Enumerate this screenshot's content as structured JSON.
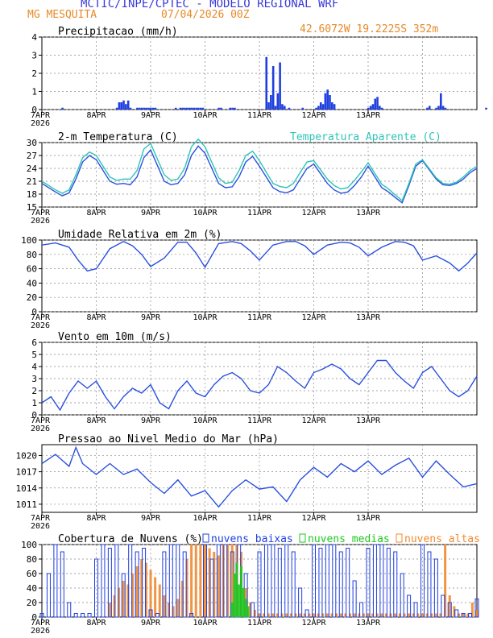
{
  "header": {
    "title": "MCTIC/INPE/CPTEC - MODELO REGIONAL WRF",
    "location": "MG MESQUITA",
    "run": "07/04/2026 00Z",
    "coords": "42.6072W 19.2225S 352m"
  },
  "colors": {
    "title": "#3a3ad8",
    "location": "#e88a2a",
    "line": "#2a50e0",
    "apparent": "#2ec4b6",
    "precip_bars": "#1f3fe0",
    "clouds_low": "#1f3fe0",
    "clouds_mid": "#1ec81e",
    "clouds_high": "#f08a30"
  },
  "x_axis": {
    "ticks": [
      "7APR",
      "8APR",
      "9APR",
      "10APR",
      "11APR",
      "12APR",
      "13APR"
    ],
    "year": "2026"
  },
  "chart_data": [
    {
      "type": "bar",
      "title": "Precipitacao (mm/h)",
      "ylim": [
        0,
        4
      ],
      "yticks": [
        0,
        1,
        2,
        3,
        4
      ],
      "hours": [
        9,
        33,
        34,
        35,
        36,
        37,
        38,
        39,
        42,
        43,
        44,
        45,
        46,
        47,
        48,
        49,
        50,
        59,
        61,
        62,
        63,
        64,
        65,
        66,
        67,
        68,
        69,
        70,
        71,
        78,
        79,
        83,
        84,
        85,
        99,
        100,
        101,
        102,
        103,
        104,
        105,
        106,
        107,
        109,
        115,
        121,
        122,
        123,
        124,
        125,
        126,
        127,
        128,
        129,
        144,
        145,
        146,
        147,
        148,
        149,
        150,
        170,
        171,
        174,
        175,
        176,
        177,
        178,
        196
      ],
      "values": [
        0.1,
        0.1,
        0.4,
        0.4,
        0.5,
        0.3,
        0.5,
        0.1,
        0.1,
        0.1,
        0.1,
        0.1,
        0.1,
        0.1,
        0.1,
        0.1,
        0.1,
        0.1,
        0.1,
        0.1,
        0.1,
        0.1,
        0.1,
        0.1,
        0.1,
        0.1,
        0.1,
        0.1,
        0.1,
        0.1,
        0.1,
        0.1,
        0.1,
        0.1,
        2.9,
        0.4,
        0.8,
        2.4,
        0.2,
        0.9,
        2.6,
        0.3,
        0.2,
        0.1,
        0.1,
        0.1,
        0.2,
        0.4,
        0.3,
        0.9,
        1.1,
        0.8,
        0.4,
        0.3,
        0.1,
        0.2,
        0.3,
        0.6,
        0.7,
        0.2,
        0.1,
        0.1,
        0.2,
        0.1,
        0.2,
        0.9,
        0.2,
        0.1,
        0.1
      ]
    },
    {
      "type": "line",
      "title": "2-m Temperatura (C)",
      "ylim": [
        15,
        30
      ],
      "yticks": [
        15,
        18,
        21,
        24,
        27,
        30
      ],
      "hours": [
        0,
        6,
        9,
        12,
        15,
        18,
        21,
        24,
        30,
        33,
        36,
        39,
        42,
        45,
        48,
        54,
        57,
        60,
        63,
        66,
        69,
        72,
        78,
        81,
        84,
        87,
        90,
        93,
        96,
        102,
        105,
        108,
        111,
        114,
        117,
        120,
        126,
        129,
        132,
        135,
        138,
        141,
        144,
        150,
        153,
        156,
        159,
        162,
        165,
        168,
        174,
        177,
        180,
        183,
        186,
        189,
        192
      ],
      "series": [
        {
          "name": "",
          "values": [
            20.5,
            18.5,
            17.6,
            18.3,
            21.5,
            25.5,
            27.0,
            26.0,
            21.0,
            20.3,
            20.5,
            20.2,
            22.0,
            26.5,
            28.3,
            21.0,
            20.2,
            20.5,
            22.5,
            27.0,
            29.2,
            27.5,
            20.5,
            19.5,
            19.7,
            22.0,
            25.5,
            26.8,
            24.5,
            19.5,
            18.6,
            18.3,
            19.0,
            21.5,
            24.0,
            25.0,
            20.5,
            19.0,
            18.2,
            18.5,
            20.0,
            22.0,
            24.5,
            19.5,
            18.5,
            17.2,
            16.0,
            20.0,
            24.5,
            25.8,
            21.5,
            20.2,
            20.0,
            20.5,
            21.5,
            23.0,
            24.0
          ]
        },
        {
          "name": "Temperatura Aparente (C)",
          "values": [
            21.0,
            19.0,
            18.2,
            19.0,
            22.5,
            26.5,
            27.8,
            27.0,
            22.0,
            21.2,
            21.5,
            21.5,
            23.5,
            28.5,
            29.8,
            22.5,
            21.2,
            21.5,
            24.0,
            29.0,
            30.8,
            29.0,
            21.8,
            20.5,
            20.8,
            23.5,
            27.0,
            28.0,
            25.8,
            20.5,
            19.8,
            19.5,
            20.5,
            23.0,
            25.5,
            25.8,
            21.5,
            20.0,
            19.2,
            19.5,
            21.2,
            23.2,
            25.3,
            20.3,
            19.2,
            17.8,
            16.5,
            20.5,
            25.0,
            26.0,
            21.8,
            20.5,
            20.3,
            20.8,
            22.0,
            23.5,
            24.5
          ]
        }
      ]
    },
    {
      "type": "line",
      "title": "Umidade Relativa em 2m (%)",
      "ylim": [
        0,
        100
      ],
      "yticks": [
        0,
        20,
        40,
        60,
        80,
        100
      ],
      "hours": [
        0,
        6,
        12,
        16,
        20,
        24,
        30,
        36,
        40,
        44,
        48,
        54,
        60,
        64,
        68,
        72,
        78,
        84,
        88,
        92,
        96,
        102,
        108,
        112,
        116,
        120,
        126,
        132,
        136,
        140,
        144,
        150,
        156,
        160,
        164,
        168,
        174,
        180,
        184,
        188,
        192
      ],
      "series": [
        {
          "name": "",
          "values": [
            93,
            96,
            90,
            72,
            57,
            60,
            88,
            98,
            92,
            80,
            63,
            75,
            97,
            97,
            82,
            62,
            95,
            98,
            95,
            85,
            72,
            93,
            98,
            98,
            92,
            80,
            93,
            97,
            96,
            90,
            78,
            90,
            98,
            97,
            92,
            72,
            78,
            68,
            57,
            68,
            82
          ]
        }
      ]
    },
    {
      "type": "line",
      "title": "Vento em 10m (m/s)",
      "ylim": [
        0,
        6
      ],
      "yticks": [
        0,
        1,
        2,
        3,
        4,
        5,
        6
      ],
      "hours": [
        0,
        4,
        8,
        12,
        16,
        20,
        24,
        28,
        32,
        36,
        40,
        44,
        48,
        52,
        56,
        60,
        64,
        68,
        72,
        76,
        80,
        84,
        88,
        92,
        96,
        100,
        104,
        108,
        112,
        116,
        120,
        124,
        128,
        132,
        136,
        140,
        144,
        148,
        152,
        156,
        160,
        164,
        168,
        172,
        176,
        180,
        184,
        188,
        192
      ],
      "series": [
        {
          "name": "",
          "values": [
            1.0,
            1.5,
            0.4,
            1.8,
            2.8,
            2.2,
            2.8,
            1.5,
            0.5,
            1.5,
            2.2,
            1.8,
            2.5,
            1.0,
            0.5,
            2.0,
            2.8,
            1.8,
            1.5,
            2.5,
            3.2,
            3.5,
            3.0,
            2.0,
            1.8,
            2.5,
            4.0,
            3.5,
            2.8,
            2.2,
            3.5,
            3.8,
            4.2,
            3.8,
            3.0,
            2.5,
            3.5,
            4.5,
            4.5,
            3.5,
            2.8,
            2.2,
            3.5,
            4.0,
            3.0,
            2.0,
            1.5,
            2.0,
            3.2
          ]
        }
      ]
    },
    {
      "type": "line",
      "title": "Pressao ao Nivel Medio do Mar (hPa)",
      "ylim": [
        1009.5,
        1022
      ],
      "yticks": [
        1011,
        1014,
        1017,
        1020
      ],
      "hours": [
        0,
        6,
        12,
        15,
        18,
        24,
        30,
        36,
        42,
        48,
        54,
        60,
        66,
        72,
        78,
        84,
        90,
        96,
        102,
        108,
        114,
        120,
        126,
        132,
        138,
        144,
        150,
        156,
        162,
        168,
        174,
        180,
        186,
        192
      ],
      "series": [
        {
          "name": "",
          "values": [
            1018.5,
            1020.2,
            1018.0,
            1021.5,
            1018.5,
            1016.5,
            1018.5,
            1016.5,
            1017.5,
            1015.0,
            1013.0,
            1015.5,
            1012.5,
            1013.5,
            1010.5,
            1013.5,
            1015.5,
            1013.8,
            1014.2,
            1011.5,
            1015.5,
            1017.8,
            1016.0,
            1018.5,
            1017.0,
            1019.0,
            1016.5,
            1018.2,
            1019.5,
            1016.0,
            1019.0,
            1016.5,
            1014.2,
            1014.8
          ]
        }
      ]
    },
    {
      "type": "bar",
      "title": "Cobertura de Nuvens (%)",
      "ylim": [
        0,
        100
      ],
      "yticks": [
        0,
        20,
        40,
        60,
        80,
        100
      ],
      "series": [
        {
          "name": "nuvens baixas",
          "hours": [
            0,
            3,
            6,
            9,
            12,
            15,
            18,
            21,
            24,
            27,
            30,
            33,
            36,
            39,
            42,
            45,
            48,
            51,
            54,
            57,
            60,
            63,
            66,
            69,
            72,
            75,
            78,
            81,
            84,
            87,
            90,
            93,
            96,
            99,
            102,
            105,
            108,
            111,
            114,
            117,
            120,
            123,
            126,
            129,
            132,
            135,
            138,
            141,
            144,
            147,
            150,
            153,
            156,
            159,
            162,
            165,
            168,
            171,
            174,
            177,
            180,
            183,
            186,
            189,
            192
          ],
          "values": [
            5,
            60,
            100,
            90,
            20,
            5,
            5,
            5,
            80,
            100,
            95,
            100,
            60,
            100,
            90,
            95,
            10,
            5,
            90,
            100,
            100,
            90,
            5,
            0,
            100,
            80,
            100,
            100,
            90,
            100,
            60,
            20,
            90,
            100,
            100,
            95,
            100,
            90,
            40,
            10,
            100,
            95,
            100,
            100,
            90,
            95,
            50,
            20,
            95,
            100,
            100,
            95,
            90,
            60,
            30,
            20,
            100,
            90,
            80,
            30,
            20,
            10,
            5,
            5,
            25
          ]
        },
        {
          "name": "nuvens medias",
          "hours": [
            84,
            85,
            86,
            87,
            88,
            89,
            90,
            91
          ],
          "values": [
            20,
            60,
            75,
            45,
            70,
            40,
            25,
            15
          ]
        },
        {
          "name": "nuvens altas",
          "hours": [
            30,
            32,
            34,
            36,
            38,
            40,
            42,
            44,
            46,
            48,
            50,
            52,
            54,
            56,
            58,
            60,
            62,
            64,
            66,
            68,
            70,
            72,
            74,
            76,
            78,
            80,
            82,
            84,
            86,
            88,
            90,
            92,
            94,
            96,
            98,
            100,
            102,
            104,
            106,
            108,
            110,
            112,
            114,
            116,
            118,
            120,
            122,
            124,
            126,
            128,
            130,
            132,
            134,
            136,
            138,
            140,
            142,
            144,
            146,
            148,
            150,
            152,
            154,
            156,
            158,
            160,
            162,
            164,
            166,
            168,
            170,
            172,
            174,
            176,
            178,
            180,
            182,
            184,
            186,
            188,
            190,
            192
          ],
          "values": [
            20,
            30,
            40,
            50,
            45,
            60,
            70,
            80,
            75,
            65,
            55,
            45,
            30,
            20,
            15,
            25,
            50,
            80,
            100,
            100,
            100,
            100,
            95,
            90,
            85,
            100,
            100,
            100,
            100,
            90,
            40,
            20,
            10,
            5,
            5,
            5,
            5,
            5,
            5,
            5,
            5,
            5,
            5,
            5,
            5,
            5,
            5,
            5,
            5,
            5,
            5,
            5,
            5,
            5,
            5,
            5,
            5,
            5,
            5,
            5,
            5,
            5,
            5,
            5,
            5,
            5,
            5,
            5,
            5,
            5,
            5,
            5,
            5,
            5,
            100,
            30,
            15,
            5,
            5,
            5,
            20,
            10
          ]
        }
      ]
    }
  ]
}
